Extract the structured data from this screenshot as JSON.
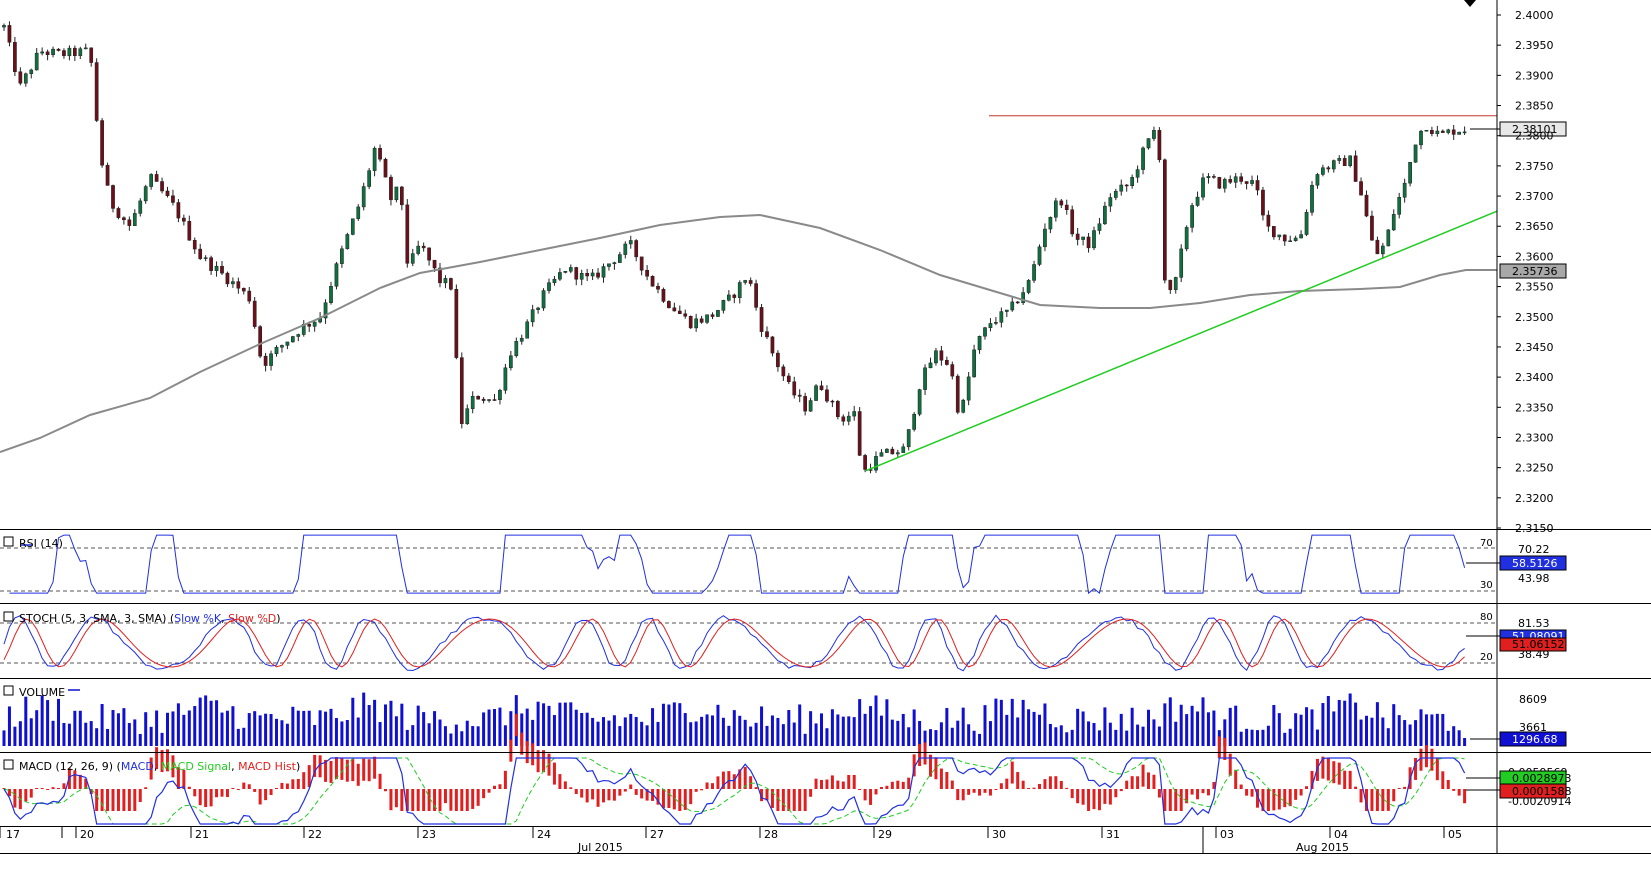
{
  "chart_data": {
    "type": "candlestick",
    "title": "",
    "time_axis": {
      "day_labels": [
        "17",
        "20",
        "21",
        "22",
        "23",
        "24",
        "27",
        "28",
        "29",
        "30",
        "31",
        "03",
        "04",
        "05"
      ],
      "month_labels": [
        "Jul 2015",
        "Aug 2015"
      ]
    },
    "price_panel": {
      "ylim": [
        2.315,
        2.4
      ],
      "tick_labels": [
        "2.4000",
        "2.3950",
        "2.3900",
        "2.3850",
        "2.3800",
        "2.3750",
        "2.3700",
        "2.3650",
        "2.3600",
        "2.3550",
        "2.3500",
        "2.3450",
        "2.3400",
        "2.3350",
        "2.3300",
        "2.3250",
        "2.3200",
        "2.3150"
      ],
      "current_price_label": "2.38101",
      "moving_average_label": "2.35736",
      "resistance_level": 2.3833,
      "support_trendline": {
        "start": 2.3245,
        "end": 2.3675
      },
      "colors": {
        "bull": "#0e6f3f",
        "bear": "#6b0f1a",
        "moving_average": "#8a8a8a",
        "resistance": "#c0392b",
        "trendline": "#22cc22"
      }
    },
    "rsi": {
      "label": "RSI (14)",
      "levels": [
        "70",
        "30"
      ],
      "axis_labels": [
        "70.22",
        "43.98"
      ],
      "current_value": "58.5126",
      "color": "#2030e0"
    },
    "stochastic": {
      "label": "STOCH (5, 3, SMA, 3, SMA)",
      "k_label": "Slow %K",
      "d_label": "Slow %D",
      "levels": [
        "80",
        "20"
      ],
      "axis_labels": [
        "81.53",
        "38.49"
      ],
      "k_value": "51.08091",
      "d_value": "51.06152",
      "k_color": "#2030e0",
      "d_color": "#e02020"
    },
    "volume": {
      "label": "VOLUME",
      "axis_labels": [
        "8609",
        "3661"
      ],
      "current_value": "1296.68",
      "color": "#1010d0"
    },
    "macd": {
      "label": "MACD (12, 26, 9)",
      "macd_label": "MACD",
      "signal_label": "MACD Signal",
      "hist_label": "MACD Hist",
      "axis_labels": [
        "0.0059569",
        "-0.0020914"
      ],
      "macd_value": "0.0028973",
      "hist_value": "0.0001588",
      "colors": {
        "macd": "#2030e0",
        "signal": "#22cc22",
        "hist": "#e02020"
      }
    }
  }
}
